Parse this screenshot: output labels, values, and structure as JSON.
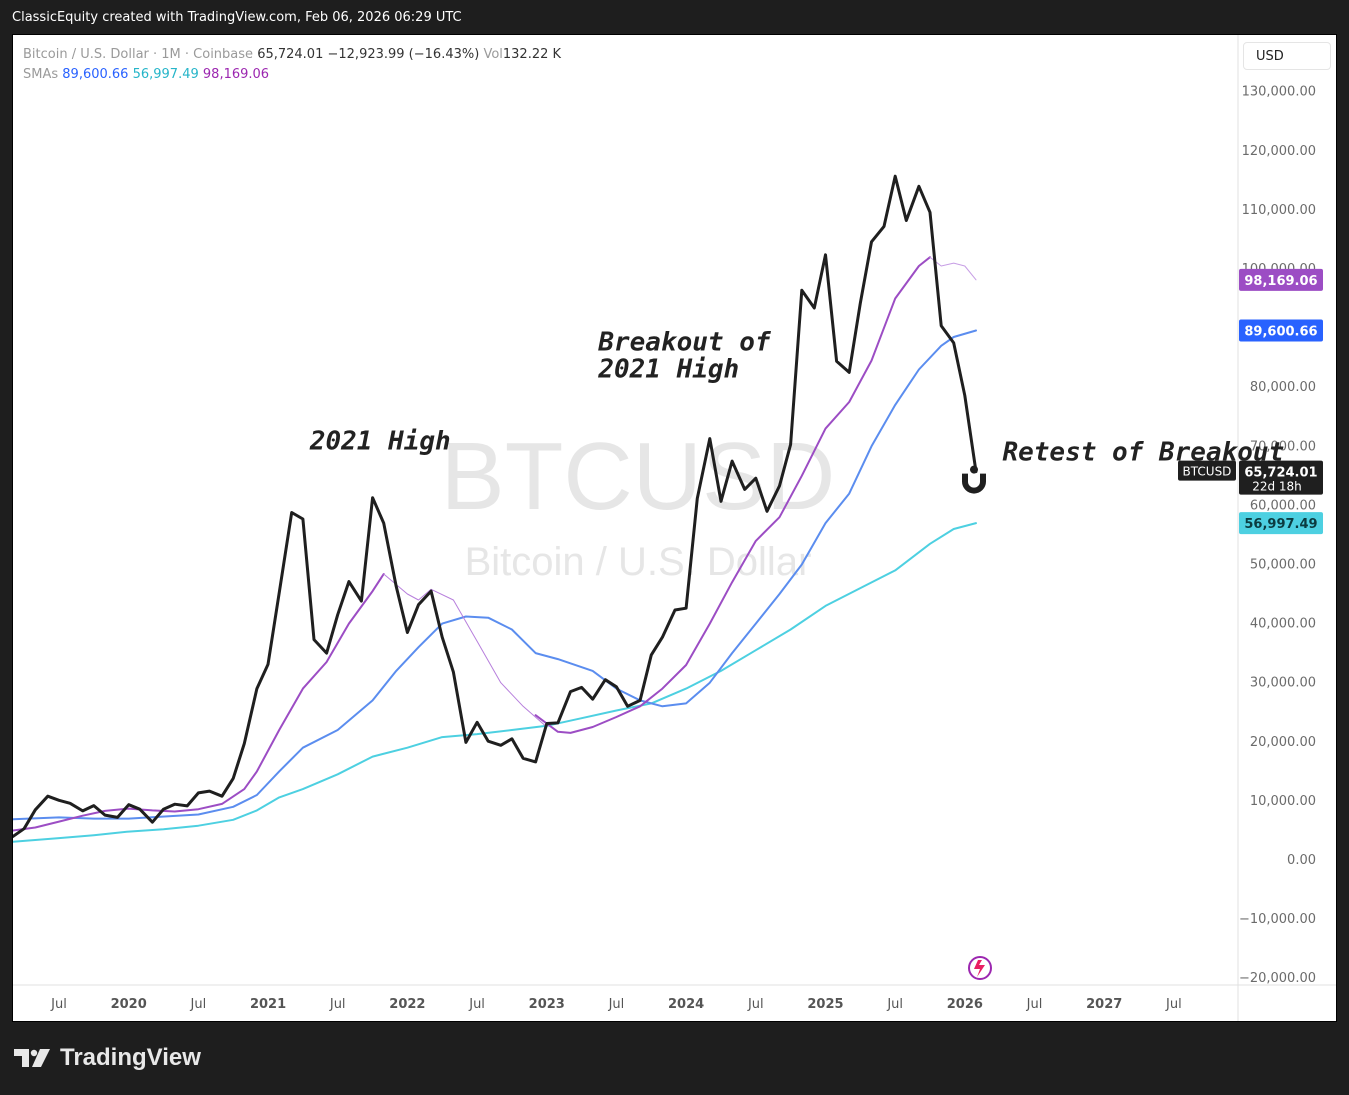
{
  "header": {
    "text": "ClassicEquity created with TradingView.com, Feb 06, 2026 06:29 UTC"
  },
  "legend": {
    "symbol_line": "Bitcoin / U.S. Dollar · 1M · Coinbase",
    "price": "65,724.01",
    "change": "−12,923.99 (−16.43%)",
    "vol_label": "Vol",
    "vol_value": "132.22 K",
    "sma_label": "SMAs",
    "sma1": "89,600.66",
    "sma2": "56,997.49",
    "sma3": "98,169.06"
  },
  "currency_button": "USD",
  "watermark": {
    "symbol": "BTCUSD",
    "name": "Bitcoin / U.S. Dollar"
  },
  "footer": {
    "brand": "TradingView"
  },
  "colors": {
    "price": "#1f1f1f",
    "sma_blue": "#5b8def",
    "sma_cyan": "#4dd0e1",
    "sma_purple": "#9c4dc4"
  },
  "chart_data": {
    "type": "line",
    "title": "Bitcoin / U.S. Dollar · 1M · Coinbase",
    "y_ticks": [
      130000,
      120000,
      110000,
      100000,
      90000,
      80000,
      70000,
      60000,
      50000,
      40000,
      30000,
      20000,
      10000,
      0,
      -10000,
      -20000
    ],
    "y_tick_labels": [
      "130,000.00",
      "120,000.00",
      "110,000.00",
      "100,000.00",
      "90,000.00",
      "80,000.00",
      "70,000.00",
      "60,000.00",
      "50,000.00",
      "40,000.00",
      "30,000.00",
      "20,000.00",
      "10,000.00",
      "0.00",
      "−10,000.00",
      "−20,000.00"
    ],
    "ylim": [
      -22000,
      135000
    ],
    "xlim": [
      2019.17,
      2027.96
    ],
    "x_ticks": [
      {
        "label": "Jul",
        "x": 2019.5
      },
      {
        "label": "2020",
        "x": 2020.0
      },
      {
        "label": "Jul",
        "x": 2020.5
      },
      {
        "label": "2021",
        "x": 2021.0
      },
      {
        "label": "Jul",
        "x": 2021.5
      },
      {
        "label": "2022",
        "x": 2022.0
      },
      {
        "label": "Jul",
        "x": 2022.5
      },
      {
        "label": "2023",
        "x": 2023.0
      },
      {
        "label": "Jul",
        "x": 2023.5
      },
      {
        "label": "2024",
        "x": 2024.0
      },
      {
        "label": "Jul",
        "x": 2024.5
      },
      {
        "label": "2025",
        "x": 2025.0
      },
      {
        "label": "Jul",
        "x": 2025.5
      },
      {
        "label": "2026",
        "x": 2026.0
      },
      {
        "label": "Jul",
        "x": 2026.5
      },
      {
        "label": "2027",
        "x": 2027.0
      },
      {
        "label": "Jul",
        "x": 2027.5
      }
    ],
    "series": [
      {
        "key": "price",
        "color": "#1f1f1f",
        "width": 3,
        "points": [
          [
            2019.17,
            4000
          ],
          [
            2019.25,
            5300
          ],
          [
            2019.33,
            8500
          ],
          [
            2019.42,
            10800
          ],
          [
            2019.5,
            10100
          ],
          [
            2019.58,
            9600
          ],
          [
            2019.67,
            8300
          ],
          [
            2019.75,
            9200
          ],
          [
            2019.83,
            7600
          ],
          [
            2019.92,
            7200
          ],
          [
            2020.0,
            9350
          ],
          [
            2020.08,
            8600
          ],
          [
            2020.17,
            6400
          ],
          [
            2020.25,
            8600
          ],
          [
            2020.33,
            9450
          ],
          [
            2020.42,
            9150
          ],
          [
            2020.5,
            11350
          ],
          [
            2020.58,
            11650
          ],
          [
            2020.67,
            10800
          ],
          [
            2020.75,
            13800
          ],
          [
            2020.83,
            19700
          ],
          [
            2020.92,
            29000
          ],
          [
            2021.0,
            33100
          ],
          [
            2021.08,
            45200
          ],
          [
            2021.17,
            58800
          ],
          [
            2021.25,
            57700
          ],
          [
            2021.33,
            37300
          ],
          [
            2021.42,
            35000
          ],
          [
            2021.5,
            41500
          ],
          [
            2021.58,
            47100
          ],
          [
            2021.67,
            43800
          ],
          [
            2021.75,
            61300
          ],
          [
            2021.83,
            57000
          ],
          [
            2021.92,
            46300
          ],
          [
            2022.0,
            38500
          ],
          [
            2022.08,
            43200
          ],
          [
            2022.17,
            45500
          ],
          [
            2022.25,
            37700
          ],
          [
            2022.33,
            31800
          ],
          [
            2022.42,
            19900
          ],
          [
            2022.5,
            23300
          ],
          [
            2022.58,
            20100
          ],
          [
            2022.67,
            19400
          ],
          [
            2022.75,
            20500
          ],
          [
            2022.83,
            17200
          ],
          [
            2022.92,
            16600
          ],
          [
            2023.0,
            23100
          ],
          [
            2023.08,
            23200
          ],
          [
            2023.17,
            28500
          ],
          [
            2023.25,
            29200
          ],
          [
            2023.33,
            27200
          ],
          [
            2023.42,
            30500
          ],
          [
            2023.5,
            29300
          ],
          [
            2023.58,
            26000
          ],
          [
            2023.67,
            27000
          ],
          [
            2023.75,
            34700
          ],
          [
            2023.83,
            37700
          ],
          [
            2023.92,
            42300
          ],
          [
            2024.0,
            42600
          ],
          [
            2024.08,
            61200
          ],
          [
            2024.17,
            71300
          ],
          [
            2024.25,
            60700
          ],
          [
            2024.33,
            67500
          ],
          [
            2024.42,
            62700
          ],
          [
            2024.5,
            64600
          ],
          [
            2024.58,
            59000
          ],
          [
            2024.67,
            63300
          ],
          [
            2024.75,
            70300
          ],
          [
            2024.83,
            96400
          ],
          [
            2024.92,
            93400
          ],
          [
            2025.0,
            102400
          ],
          [
            2025.08,
            84400
          ],
          [
            2025.17,
            82500
          ],
          [
            2025.25,
            94200
          ],
          [
            2025.33,
            104600
          ],
          [
            2025.42,
            107200
          ],
          [
            2025.5,
            115700
          ],
          [
            2025.58,
            108200
          ],
          [
            2025.67,
            114000
          ],
          [
            2025.75,
            109600
          ],
          [
            2025.83,
            90400
          ],
          [
            2025.92,
            87500
          ],
          [
            2026.0,
            78600
          ],
          [
            2026.08,
            65724
          ]
        ]
      },
      {
        "key": "sma_blue",
        "color": "#5b8def",
        "width": 2,
        "label": "89,600.66",
        "points": [
          [
            2019.17,
            6900
          ],
          [
            2019.5,
            7200
          ],
          [
            2019.75,
            7000
          ],
          [
            2020.0,
            7000
          ],
          [
            2020.5,
            7700
          ],
          [
            2020.75,
            9000
          ],
          [
            2020.92,
            11000
          ],
          [
            2021.08,
            15000
          ],
          [
            2021.25,
            19000
          ],
          [
            2021.5,
            22000
          ],
          [
            2021.75,
            27000
          ],
          [
            2021.92,
            32000
          ],
          [
            2022.08,
            36000
          ],
          [
            2022.25,
            40000
          ],
          [
            2022.42,
            41200
          ],
          [
            2022.58,
            41000
          ],
          [
            2022.75,
            39000
          ],
          [
            2022.92,
            35000
          ],
          [
            2023.08,
            34000
          ],
          [
            2023.33,
            32000
          ],
          [
            2023.5,
            29000
          ],
          [
            2023.67,
            27000
          ],
          [
            2023.83,
            26000
          ],
          [
            2024.0,
            26500
          ],
          [
            2024.17,
            30000
          ],
          [
            2024.33,
            35000
          ],
          [
            2024.5,
            40000
          ],
          [
            2024.67,
            45000
          ],
          [
            2024.83,
            50000
          ],
          [
            2025.0,
            57000
          ],
          [
            2025.17,
            62000
          ],
          [
            2025.33,
            70000
          ],
          [
            2025.5,
            77000
          ],
          [
            2025.67,
            83000
          ],
          [
            2025.83,
            87000
          ],
          [
            2025.92,
            88500
          ],
          [
            2026.08,
            89600
          ]
        ]
      },
      {
        "key": "sma_cyan",
        "color": "#4dd0e1",
        "width": 2,
        "label": "56,997.49",
        "points": [
          [
            2019.17,
            3100
          ],
          [
            2019.5,
            3700
          ],
          [
            2019.75,
            4200
          ],
          [
            2020.0,
            4800
          ],
          [
            2020.25,
            5200
          ],
          [
            2020.5,
            5800
          ],
          [
            2020.75,
            6800
          ],
          [
            2020.92,
            8400
          ],
          [
            2021.08,
            10600
          ],
          [
            2021.25,
            12000
          ],
          [
            2021.5,
            14500
          ],
          [
            2021.75,
            17500
          ],
          [
            2022.0,
            19000
          ],
          [
            2022.25,
            20800
          ],
          [
            2022.5,
            21300
          ],
          [
            2022.75,
            22000
          ],
          [
            2023.0,
            22700
          ],
          [
            2023.25,
            24000
          ],
          [
            2023.5,
            25300
          ],
          [
            2023.75,
            26500
          ],
          [
            2024.0,
            29000
          ],
          [
            2024.25,
            32000
          ],
          [
            2024.5,
            35500
          ],
          [
            2024.75,
            39000
          ],
          [
            2025.0,
            43000
          ],
          [
            2025.25,
            46000
          ],
          [
            2025.5,
            49000
          ],
          [
            2025.75,
            53500
          ],
          [
            2025.92,
            56000
          ],
          [
            2026.08,
            56997
          ]
        ]
      },
      {
        "key": "sma_purple",
        "color": "#9c4dc4",
        "width": 2,
        "label": "98,169.06",
        "points": [
          [
            2019.17,
            5000
          ],
          [
            2019.33,
            5500
          ],
          [
            2019.5,
            6500
          ],
          [
            2019.67,
            7500
          ],
          [
            2019.83,
            8300
          ],
          [
            2020.0,
            8700
          ],
          [
            2020.17,
            8400
          ],
          [
            2020.33,
            8200
          ],
          [
            2020.5,
            8600
          ],
          [
            2020.67,
            9500
          ],
          [
            2020.83,
            12000
          ],
          [
            2020.92,
            15000
          ],
          [
            2021.08,
            22000
          ],
          [
            2021.25,
            29000
          ],
          [
            2021.42,
            33500
          ],
          [
            2021.58,
            40000
          ],
          [
            2021.75,
            45500
          ],
          [
            2021.83,
            48400
          ]
        ]
      },
      {
        "key": "sma_purple_thin",
        "color": "#b77fdc",
        "width": 1,
        "points": [
          [
            2021.83,
            48400
          ],
          [
            2022.0,
            45000
          ],
          [
            2022.08,
            44000
          ],
          [
            2022.17,
            45800
          ],
          [
            2022.33,
            44000
          ],
          [
            2022.5,
            37000
          ],
          [
            2022.67,
            30000
          ],
          [
            2022.83,
            26000
          ],
          [
            2023.0,
            22500
          ]
        ]
      },
      {
        "key": "sma_purple2",
        "color": "#9c4dc4",
        "width": 2,
        "points": [
          [
            2022.92,
            24500
          ],
          [
            2023.08,
            21700
          ],
          [
            2023.17,
            21500
          ],
          [
            2023.33,
            22500
          ],
          [
            2023.5,
            24200
          ],
          [
            2023.67,
            26000
          ],
          [
            2023.83,
            29000
          ],
          [
            2024.0,
            33000
          ],
          [
            2024.17,
            40000
          ],
          [
            2024.33,
            47000
          ],
          [
            2024.5,
            54000
          ],
          [
            2024.67,
            58000
          ],
          [
            2024.83,
            65000
          ],
          [
            2025.0,
            73000
          ],
          [
            2025.17,
            77500
          ],
          [
            2025.33,
            84500
          ],
          [
            2025.5,
            95000
          ],
          [
            2025.67,
            100500
          ],
          [
            2025.75,
            102000
          ]
        ]
      },
      {
        "key": "sma_purple_thin2",
        "color": "#c79ee5",
        "width": 1,
        "points": [
          [
            2025.75,
            102000
          ],
          [
            2025.83,
            100500
          ],
          [
            2025.92,
            101000
          ],
          [
            2026.0,
            100500
          ],
          [
            2026.08,
            98169
          ]
        ]
      }
    ],
    "annotations": [
      {
        "text": "2021 High",
        "x": 2021.3,
        "y": 69500
      },
      {
        "text": "Breakout of",
        "x": 2023.37,
        "y": 86200
      },
      {
        "text": "2021 High",
        "x": 2023.37,
        "y": 81600
      },
      {
        "text": "Retest of Breakout",
        "x": 2026.27,
        "y": 67600
      }
    ],
    "price_labels": [
      {
        "text": "98,169.06",
        "y": 98169,
        "bg": "#9c4dc4",
        "fg": "#ffffff"
      },
      {
        "text": "89,600.66",
        "y": 89600,
        "bg": "#2962ff",
        "fg": "#ffffff"
      },
      {
        "text": "65,724.01",
        "sub": "22d 18h",
        "y": 65724,
        "bg": "#1f1f1f",
        "fg": "#ffffff",
        "tag": "BTCUSD"
      },
      {
        "text": "56,997.49",
        "y": 56997,
        "bg": "#4dd0e1",
        "fg": "#0b3b40"
      }
    ]
  }
}
